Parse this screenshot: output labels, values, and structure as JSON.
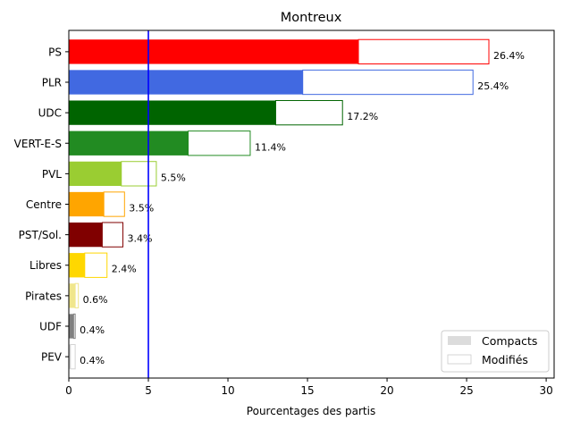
{
  "chart_data": {
    "type": "bar",
    "orientation": "horizontal",
    "title": "Montreux",
    "xlabel": "Pourcentages des partis",
    "ylabel": "",
    "xlim": [
      0,
      30.5
    ],
    "xticks": [
      0,
      5,
      10,
      15,
      20,
      25,
      30
    ],
    "threshold_line": {
      "value": 5,
      "color": "#0000ff"
    },
    "legend": {
      "position": "lower-right",
      "entries": [
        "Compacts",
        "Modifiés"
      ]
    },
    "grid": false,
    "categories": [
      "PS",
      "PLR",
      "UDC",
      "VERT-E-S",
      "PVL",
      "Centre",
      "PST/Sol.",
      "Libres",
      "Pirates",
      "UDF",
      "PEV"
    ],
    "series": [
      {
        "name": "Compacts",
        "values": [
          18.2,
          14.7,
          13.0,
          7.5,
          3.3,
          2.2,
          2.1,
          1.0,
          0.4,
          0.3,
          0.1
        ]
      },
      {
        "name": "Modifiés",
        "values": [
          8.2,
          10.7,
          4.2,
          3.9,
          2.2,
          1.3,
          1.3,
          1.4,
          0.2,
          0.1,
          0.3
        ]
      }
    ],
    "totals": [
      26.4,
      25.4,
      17.2,
      11.4,
      5.5,
      3.5,
      3.4,
      2.4,
      0.6,
      0.4,
      0.4
    ],
    "value_labels": [
      "26.4%",
      "25.4%",
      "17.2%",
      "11.4%",
      "5.5%",
      "3.5%",
      "3.4%",
      "2.4%",
      "0.6%",
      "0.4%",
      "0.4%"
    ],
    "colors": [
      "#ff0000",
      "#4169e1",
      "#006400",
      "#228b22",
      "#9acd32",
      "#ffa500",
      "#800000",
      "#ffd700",
      "#f0e68c",
      "#808080",
      "#d3d3d3"
    ],
    "legend_colors": {
      "Compacts": "#dcdcdc",
      "Modifiés": "#ffffff"
    }
  }
}
